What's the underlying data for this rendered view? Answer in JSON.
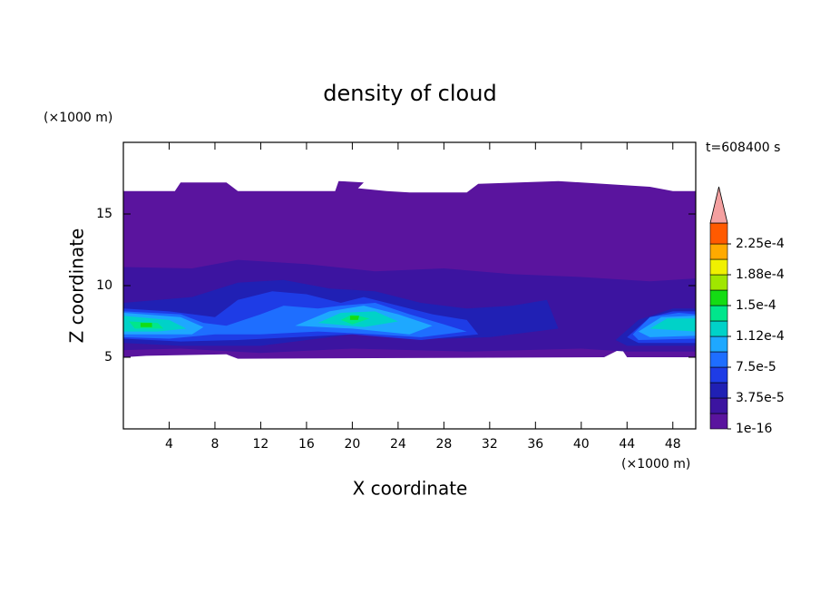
{
  "chart_data": {
    "type": "contour",
    "title": "density of cloud",
    "xlabel": "X coordinate",
    "ylabel": "Z coordinate",
    "x_unit": "(×1000 m)",
    "y_unit": "(×1000 m)",
    "annotation": "t=608400 s",
    "xlim": [
      0,
      50
    ],
    "ylim": [
      0,
      20
    ],
    "xticks": [
      4,
      8,
      12,
      16,
      20,
      24,
      28,
      32,
      36,
      40,
      44,
      48
    ],
    "yticks": [
      5,
      10,
      15
    ],
    "levels": [
      {
        "value": 1e-16,
        "label": "1e-16"
      },
      1.875e-05,
      {
        "value": 3.75e-05,
        "label": "3.75e-5"
      },
      5.625e-05,
      {
        "value": 7.5e-05,
        "label": "7.5e-5"
      },
      9.375e-05,
      {
        "value": 0.0001125,
        "label": "1.12e-4"
      },
      0.00013125,
      {
        "value": 0.00015,
        "label": "1.5e-4"
      },
      0.00016875,
      {
        "value": 0.0001875,
        "label": "1.88e-4"
      },
      0.00020625,
      {
        "value": 0.000225,
        "label": "2.25e-4"
      }
    ],
    "colors": [
      "#5a149e",
      "#3c14a0",
      "#2020b4",
      "#1e3ce6",
      "#1e6eff",
      "#1ea8ff",
      "#00d2c8",
      "#00e68c",
      "#14dc14",
      "#a0e600",
      "#f0f000",
      "#ffaa00",
      "#ff5a00"
    ],
    "over_color": "#f4a0a0",
    "contours": [
      {
        "level": 1e-16,
        "x": [
          0,
          4.5,
          5,
          9,
          10,
          18.5,
          18.8,
          21,
          20.5,
          23,
          25,
          30,
          31,
          38,
          46,
          48,
          50,
          50,
          44,
          43.5,
          42,
          10,
          9,
          2,
          0
        ],
        "y": [
          16.6,
          16.6,
          17.2,
          17.2,
          16.6,
          16.6,
          17.3,
          17.2,
          16.8,
          16.6,
          16.5,
          16.5,
          17.1,
          17.3,
          16.9,
          16.6,
          16.6,
          5.0,
          5.0,
          5.6,
          5.0,
          4.9,
          5.2,
          5.1,
          5.0
        ]
      },
      {
        "level": 1.875e-05,
        "x": [
          0,
          6,
          10,
          16,
          22,
          28,
          34,
          40,
          46,
          50,
          50,
          44,
          40,
          30,
          20,
          12,
          5,
          0
        ],
        "y": [
          11.3,
          11.2,
          11.8,
          11.5,
          11.0,
          11.2,
          10.8,
          10.6,
          10.3,
          10.5,
          5.4,
          5.4,
          5.6,
          5.4,
          5.6,
          5.3,
          5.6,
          5.5
        ]
      },
      {
        "level": 3.75e-05,
        "x": [
          0,
          6,
          10,
          14,
          18,
          22,
          26,
          30,
          34,
          37,
          38,
          32,
          28,
          20,
          12,
          5,
          0
        ],
        "y": [
          8.8,
          9.2,
          10.2,
          10.4,
          9.8,
          9.6,
          8.8,
          8.4,
          8.6,
          9.0,
          7.0,
          6.4,
          6.3,
          6.6,
          5.8,
          5.8,
          6.0
        ]
      },
      {
        "level": 3.75e-05,
        "x": [
          43,
          45,
          48,
          50,
          50,
          44
        ],
        "y": [
          6.2,
          7.6,
          8.4,
          8.4,
          5.8,
          5.8
        ]
      },
      {
        "level": 5.625e-05,
        "x": [
          0,
          4,
          8,
          10,
          13,
          16,
          19,
          21,
          24,
          27,
          30,
          31,
          26,
          20,
          15,
          10,
          5,
          0
        ],
        "y": [
          8.4,
          8.2,
          7.8,
          9.0,
          9.6,
          9.4,
          8.8,
          9.2,
          8.6,
          8.0,
          7.6,
          6.6,
          6.2,
          6.6,
          6.4,
          6.2,
          6.1,
          6.3
        ]
      },
      {
        "level": 5.625e-05,
        "x": [
          44,
          46,
          48,
          50,
          50,
          45
        ],
        "y": [
          6.4,
          7.8,
          8.2,
          8.2,
          6.0,
          6.0
        ]
      },
      {
        "level": 7.5e-05,
        "x": [
          0,
          5,
          7,
          9,
          12,
          14,
          17,
          19,
          22,
          25,
          28,
          30,
          26,
          22,
          17,
          12,
          8,
          4,
          0
        ],
        "y": [
          8.2,
          8.0,
          7.4,
          7.2,
          8.0,
          8.6,
          8.4,
          8.6,
          8.8,
          8.0,
          7.3,
          6.8,
          6.4,
          6.6,
          6.8,
          6.6,
          6.6,
          6.3,
          6.4
        ]
      },
      {
        "level": 7.5e-05,
        "x": [
          44.5,
          46,
          48.5,
          50,
          50,
          45
        ],
        "y": [
          6.6,
          7.8,
          8.1,
          8.0,
          6.3,
          6.2
        ]
      },
      {
        "level": 9.375e-05,
        "x": [
          0,
          5,
          7,
          6,
          0
        ],
        "y": [
          8.1,
          7.8,
          7.1,
          6.6,
          6.6
        ]
      },
      {
        "level": 9.375e-05,
        "x": [
          15,
          18,
          21,
          24,
          27,
          25,
          20
        ],
        "y": [
          7.2,
          8.2,
          8.6,
          8.0,
          7.2,
          6.6,
          7.0
        ]
      },
      {
        "level": 9.375e-05,
        "x": [
          45,
          47,
          50,
          50,
          46
        ],
        "y": [
          6.8,
          7.8,
          7.9,
          6.5,
          6.4
        ]
      },
      {
        "level": 0.0001125,
        "x": [
          0,
          4,
          5.5,
          3,
          0
        ],
        "y": [
          7.9,
          7.6,
          7.0,
          6.8,
          6.8
        ]
      },
      {
        "level": 0.0001125,
        "x": [
          17,
          19,
          22,
          24,
          21
        ],
        "y": [
          7.4,
          8.1,
          8.2,
          7.5,
          7.1
        ]
      },
      {
        "level": 0.0001125,
        "x": [
          46,
          47.5,
          50,
          50
        ],
        "y": [
          7.0,
          7.7,
          7.7,
          6.8
        ]
      },
      {
        "level": 0.00013125,
        "x": [
          0.5,
          3,
          3.5,
          1
        ],
        "y": [
          7.5,
          7.4,
          7.0,
          7.0
        ]
      },
      {
        "level": 0.00013125,
        "x": [
          19,
          20,
          21.5,
          20
        ],
        "y": [
          7.6,
          8.0,
          7.7,
          7.3
        ]
      },
      {
        "level": 0.00015,
        "x": [
          1.5,
          2.5,
          2.5,
          1.5
        ],
        "y": [
          7.4,
          7.4,
          7.1,
          7.1
        ]
      },
      {
        "level": 0.00015,
        "x": [
          19.8,
          20.6,
          20.5,
          19.8
        ],
        "y": [
          7.9,
          7.9,
          7.6,
          7.6
        ]
      }
    ]
  }
}
